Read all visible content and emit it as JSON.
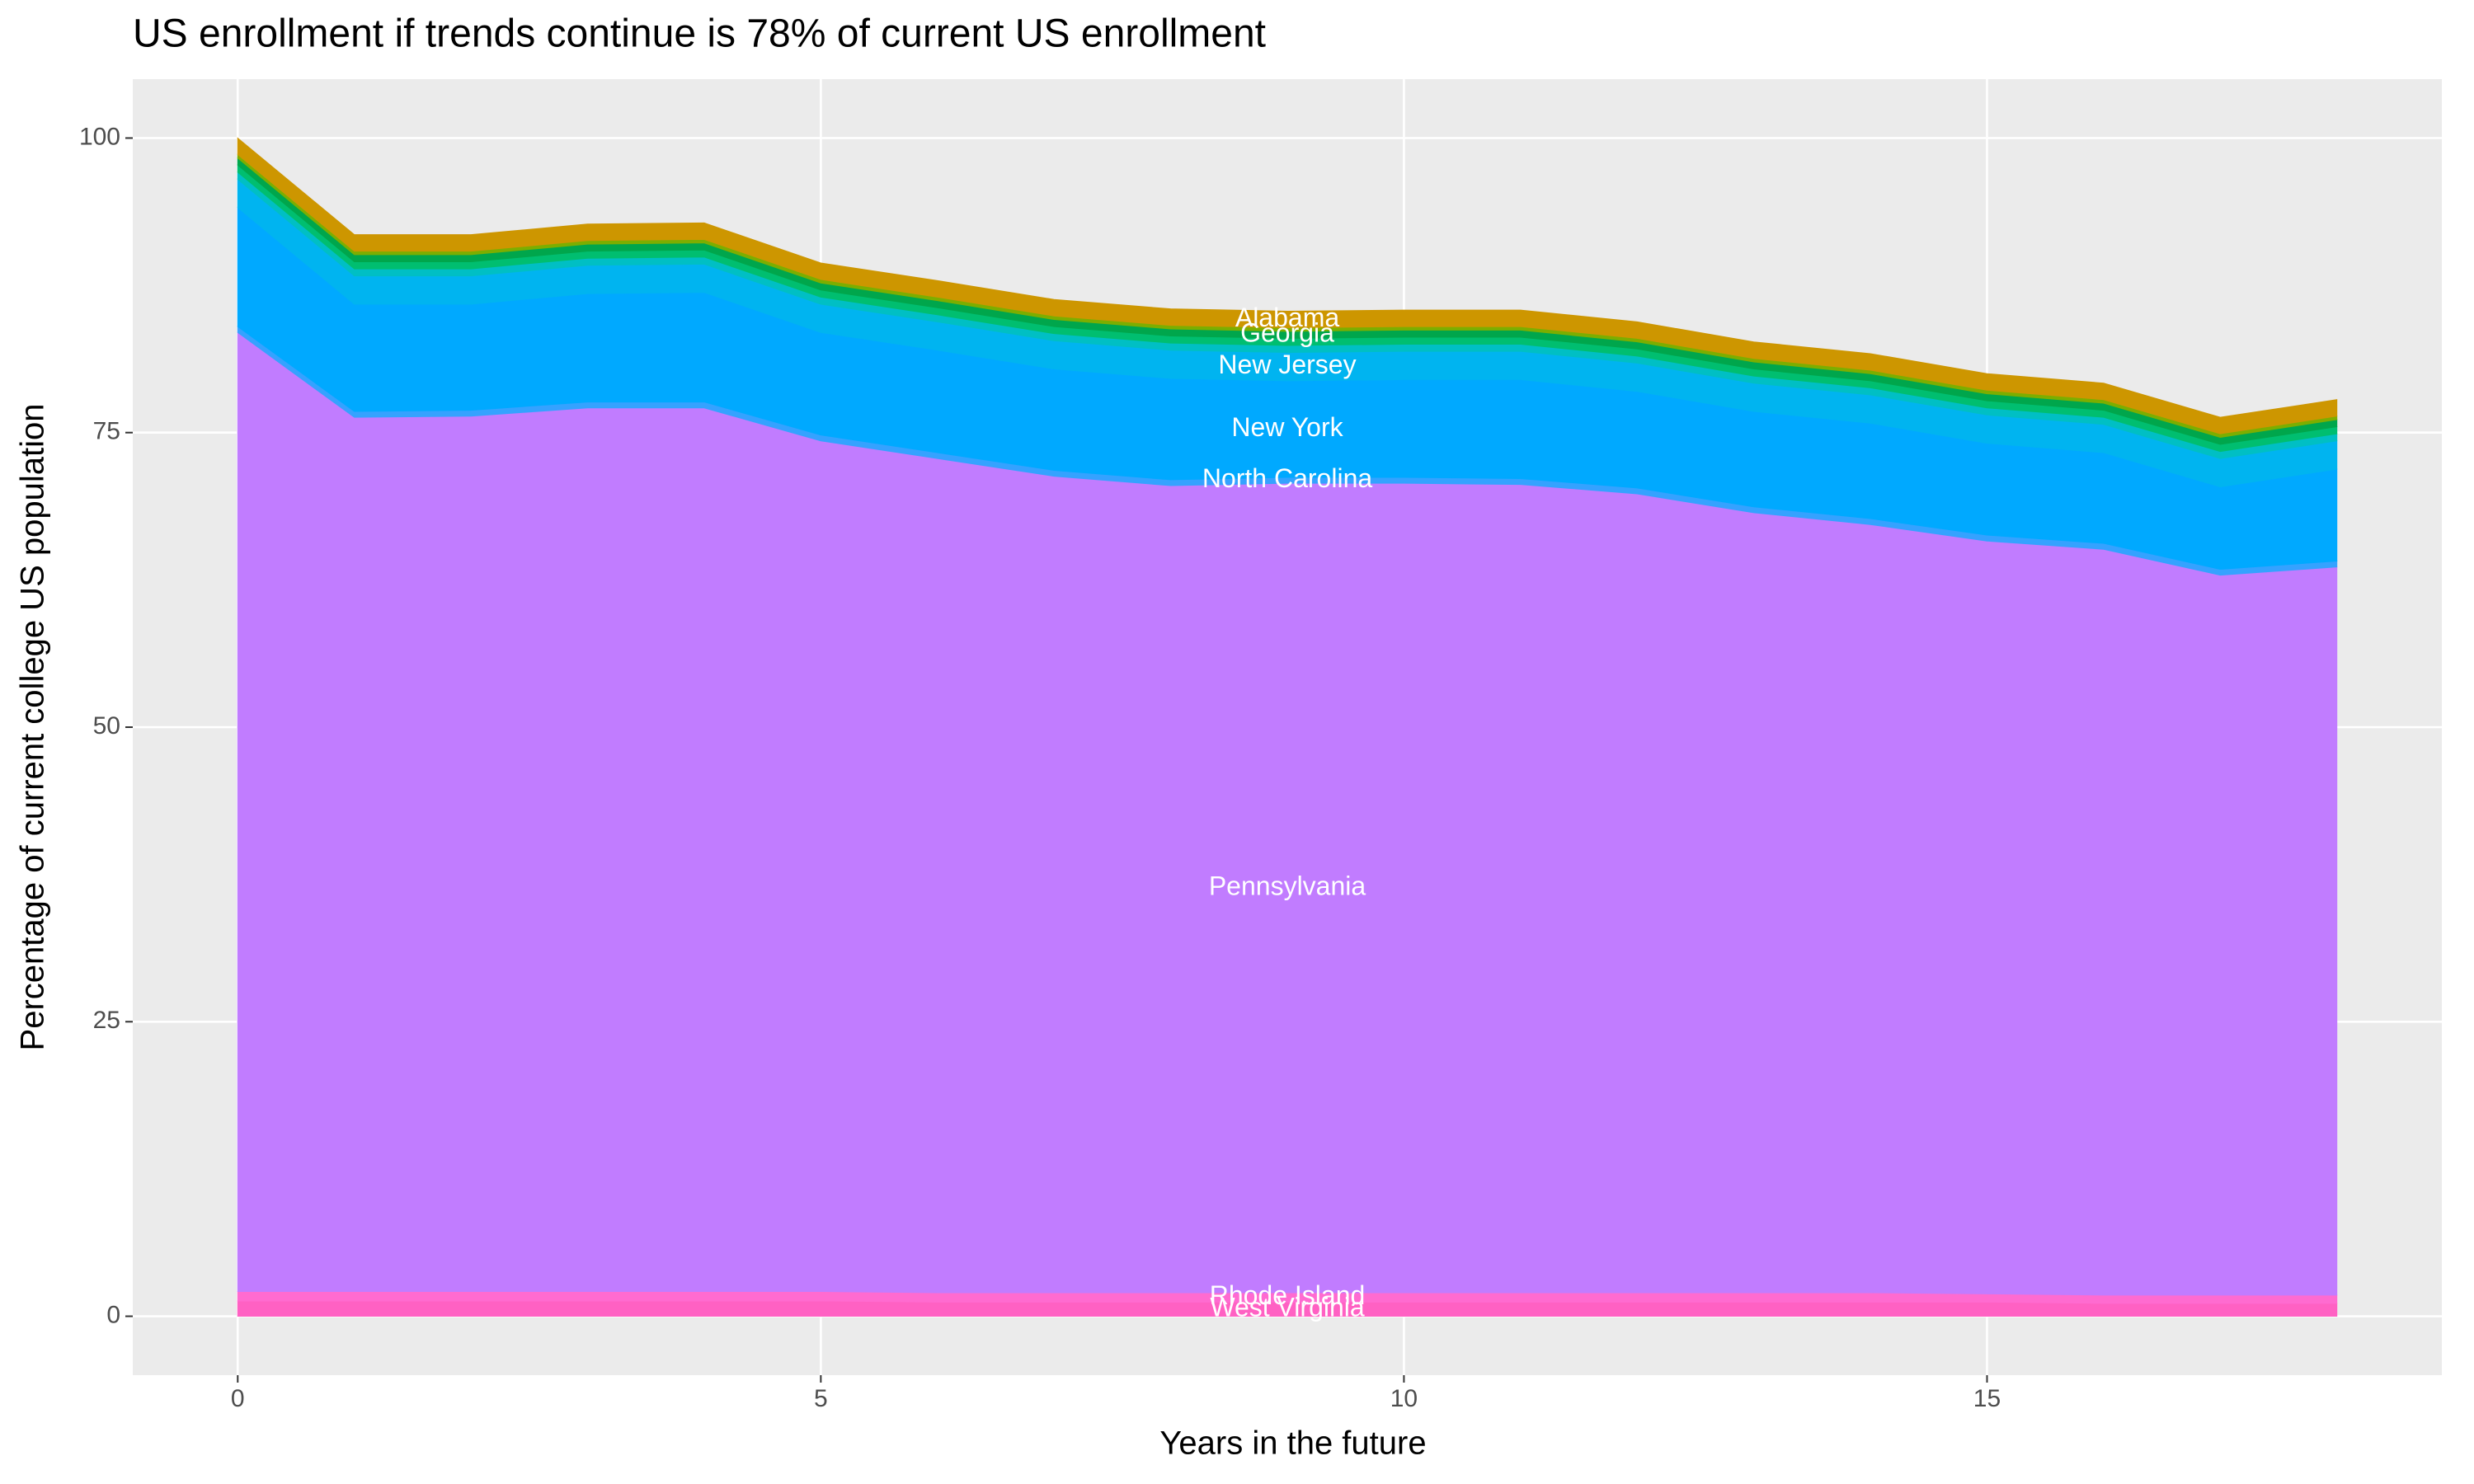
{
  "chart_data": {
    "type": "stacked_area",
    "title": "US enrollment if trends continue is 78% of current US enrollment",
    "x_label": "Years in the future",
    "y_label": "Percentage of current college US population",
    "x": [
      0,
      1,
      2,
      3,
      4,
      5,
      6,
      7,
      8,
      9,
      10,
      11,
      12,
      13,
      14,
      15,
      16,
      17,
      18
    ],
    "xlim": [
      -0.9,
      18.9
    ],
    "xticks": [
      0,
      5,
      10,
      15
    ],
    "ylim": [
      -5,
      105
    ],
    "yticks": [
      0,
      25,
      50,
      75,
      100
    ],
    "grid": true,
    "series": [
      {
        "name": "West Virginia",
        "color": "#ff61c3",
        "values": [
          1.3,
          1.3,
          1.3,
          1.3,
          1.3,
          1.3,
          1.2,
          1.2,
          1.2,
          1.2,
          1.2,
          1.2,
          1.2,
          1.2,
          1.2,
          1.2,
          1.1,
          1.1,
          1.1
        ]
      },
      {
        "name": "Rhode Island",
        "color": "#ff6bd0",
        "values": [
          0.8,
          0.8,
          0.8,
          0.8,
          0.8,
          0.8,
          0.8,
          0.8,
          0.8,
          0.8,
          0.8,
          0.8,
          0.8,
          0.8,
          0.8,
          0.7,
          0.7,
          0.7,
          0.7
        ]
      },
      {
        "name": "Pennsylvania",
        "color": "#c17cff",
        "values": [
          81.4,
          74.2,
          74.3,
          75.0,
          75.0,
          72.2,
          70.8,
          69.3,
          68.5,
          68.7,
          68.7,
          68.6,
          67.8,
          66.2,
          65.2,
          63.9,
          63.3,
          61.1,
          61.8
        ]
      },
      {
        "name": "North Carolina",
        "color": "#35a2ff",
        "values": [
          0.5,
          0.5,
          0.5,
          0.5,
          0.5,
          0.5,
          0.5,
          0.5,
          0.5,
          0.5,
          0.5,
          0.5,
          0.5,
          0.5,
          0.5,
          0.5,
          0.5,
          0.5,
          0.5
        ]
      },
      {
        "name": "New York",
        "color": "#00a9ff",
        "values": [
          10.1,
          9.1,
          9.0,
          9.2,
          9.3,
          8.7,
          8.7,
          8.6,
          8.6,
          8.2,
          8.3,
          8.4,
          8.2,
          8.1,
          8.1,
          7.8,
          7.7,
          7.0,
          7.8
        ]
      },
      {
        "name": "New Jersey",
        "color": "#00b4f0",
        "values": [
          2.4,
          2.4,
          2.4,
          2.4,
          2.4,
          2.4,
          2.4,
          2.4,
          2.4,
          2.4,
          2.4,
          2.4,
          2.4,
          2.4,
          2.4,
          2.4,
          2.4,
          2.4,
          2.4
        ]
      },
      {
        "color": "#00bfc4",
        "values": [
          0.6,
          0.6,
          0.6,
          0.6,
          0.6,
          0.6,
          0.6,
          0.6,
          0.6,
          0.6,
          0.6,
          0.6,
          0.6,
          0.6,
          0.6,
          0.6,
          0.6,
          0.6,
          0.6
        ]
      },
      {
        "color": "#00be70",
        "values": [
          0.6,
          0.6,
          0.6,
          0.6,
          0.6,
          0.6,
          0.6,
          0.6,
          0.6,
          0.6,
          0.6,
          0.6,
          0.6,
          0.6,
          0.6,
          0.6,
          0.6,
          0.6,
          0.6
        ]
      },
      {
        "name": "Georgia",
        "color": "#00a64c",
        "values": [
          0.6,
          0.6,
          0.6,
          0.6,
          0.6,
          0.6,
          0.6,
          0.6,
          0.6,
          0.6,
          0.6,
          0.6,
          0.6,
          0.6,
          0.6,
          0.6,
          0.6,
          0.6,
          0.6
        ]
      },
      {
        "color": "#7cae00",
        "values": [
          0.3,
          0.3,
          0.3,
          0.3,
          0.3,
          0.3,
          0.3,
          0.3,
          0.3,
          0.3,
          0.3,
          0.3,
          0.3,
          0.3,
          0.3,
          0.3,
          0.3,
          0.3,
          0.3
        ]
      },
      {
        "name": "Alabama",
        "color": "#cd9600",
        "values": [
          1.4,
          1.4,
          1.4,
          1.4,
          1.4,
          1.4,
          1.4,
          1.4,
          1.4,
          1.4,
          1.4,
          1.4,
          1.4,
          1.4,
          1.4,
          1.4,
          1.4,
          1.4,
          1.4
        ]
      }
    ]
  }
}
